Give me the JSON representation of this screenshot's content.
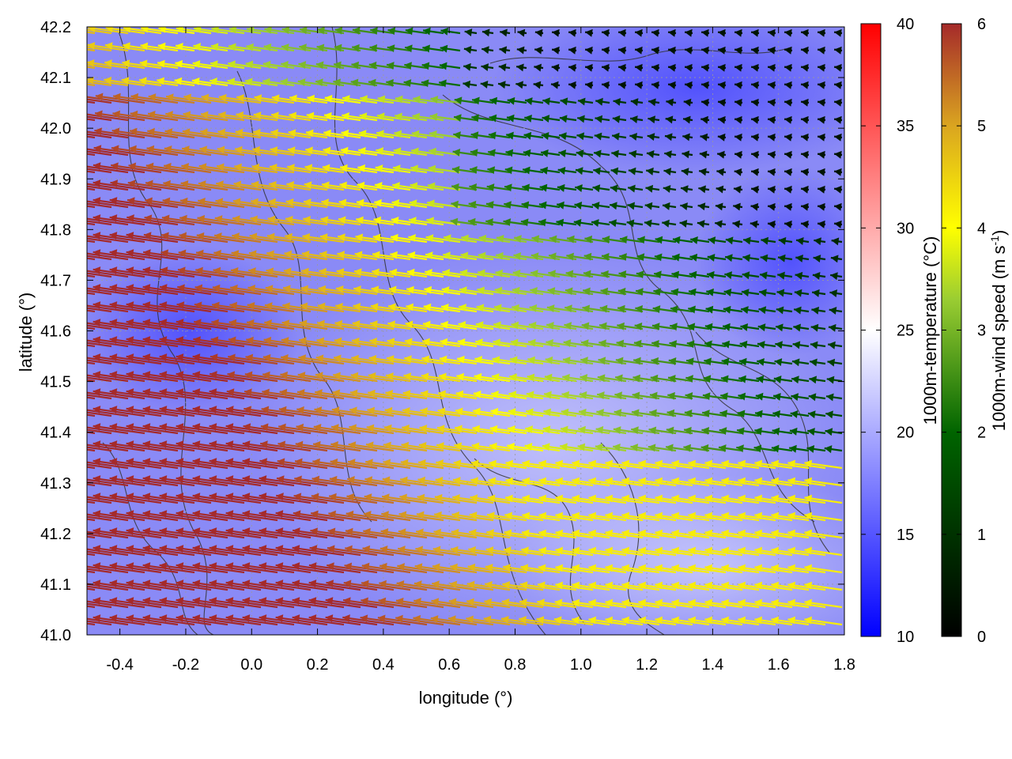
{
  "chart_data": {
    "type": "vector-field",
    "xlabel": "longitude (°)",
    "ylabel": "latitude (°)",
    "xlim": [
      -0.5,
      1.8
    ],
    "ylim": [
      41.0,
      42.2
    ],
    "x_ticks": [
      "-0.4",
      "-0.2",
      "0.0",
      "0.2",
      "0.4",
      "0.6",
      "0.8",
      "1.0",
      "1.2",
      "1.4",
      "1.6",
      "1.8"
    ],
    "x_tick_values": [
      -0.4,
      -0.2,
      0.0,
      0.2,
      0.4,
      0.6,
      0.8,
      1.0,
      1.2,
      1.4,
      1.6,
      1.8
    ],
    "y_ticks": [
      "41.0",
      "41.1",
      "41.2",
      "41.3",
      "41.4",
      "41.5",
      "41.6",
      "41.7",
      "41.8",
      "41.9",
      "42.0",
      "42.1",
      "42.2"
    ],
    "y_tick_values": [
      41.0,
      41.1,
      41.2,
      41.3,
      41.4,
      41.5,
      41.6,
      41.7,
      41.8,
      41.9,
      42.0,
      42.1,
      42.2
    ],
    "grid": true,
    "background": {
      "variable": "1000m-temperature",
      "label": "1000m-temperature (°C)",
      "range": [
        10,
        40
      ],
      "ticks": [
        "10",
        "15",
        "20",
        "25",
        "30",
        "35",
        "40"
      ],
      "tick_values": [
        10,
        15,
        20,
        25,
        30,
        35,
        40
      ],
      "colors": [
        "#0000ff",
        "#ffffff",
        "#ff0000"
      ],
      "approx_value": 18
    },
    "vectors": {
      "variable": "1000m-wind speed",
      "label_main": "1000m-wind speed (m s",
      "label_sup": "-1",
      "label_end": ")",
      "range": [
        0,
        6
      ],
      "ticks": [
        "0",
        "1",
        "2",
        "3",
        "4",
        "5",
        "6"
      ],
      "tick_values": [
        0,
        1,
        2,
        3,
        4,
        5,
        6
      ],
      "colors": [
        "#000000",
        "#006400",
        "#9acd32",
        "#ffff00",
        "#daa520",
        "#a52a2a"
      ],
      "direction": "from east-southeast (arrows point west)",
      "speed_regions": [
        {
          "region": "west and southwest",
          "speed": 6
        },
        {
          "region": "central band",
          "speed": 5
        },
        {
          "region": "east-central band",
          "speed": 4
        },
        {
          "region": "northern band",
          "speed": 3
        },
        {
          "region": "northeast",
          "speed": 1
        },
        {
          "region": "southeast",
          "speed": 4.3
        }
      ]
    },
    "overlay": "black topography contour lines"
  }
}
